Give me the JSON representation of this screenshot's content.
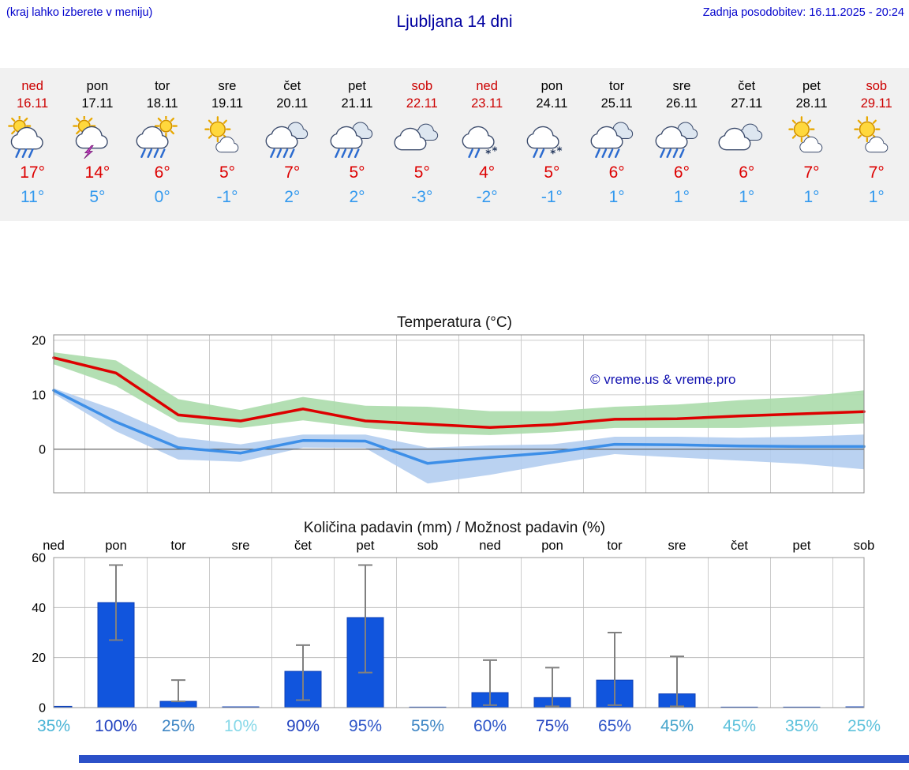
{
  "header": {
    "menu_note": "(kraj lahko izberete v meniju)",
    "title": "Ljubljana 14 dni",
    "last_update": "Zadnja posodobitev: 16.11.2025 - 20:24"
  },
  "forecast_days": [
    {
      "day": "ned",
      "date": "16.11",
      "weekend": true,
      "icon": "sun-rain",
      "tmax": "17°",
      "tmin": "11°"
    },
    {
      "day": "pon",
      "date": "17.11",
      "weekend": false,
      "icon": "sun-storm",
      "tmax": "14°",
      "tmin": "5°"
    },
    {
      "day": "tor",
      "date": "18.11",
      "weekend": false,
      "icon": "sun-rain-heavy",
      "tmax": "6°",
      "tmin": "0°"
    },
    {
      "day": "sre",
      "date": "19.11",
      "weekend": false,
      "icon": "sun-cloud",
      "tmax": "5°",
      "tmin": "-1°"
    },
    {
      "day": "čet",
      "date": "20.11",
      "weekend": false,
      "icon": "rain-heavy",
      "tmax": "7°",
      "tmin": "2°"
    },
    {
      "day": "pet",
      "date": "21.11",
      "weekend": false,
      "icon": "rain-heavy",
      "tmax": "5°",
      "tmin": "2°"
    },
    {
      "day": "sob",
      "date": "22.11",
      "weekend": true,
      "icon": "cloud",
      "tmax": "5°",
      "tmin": "-3°"
    },
    {
      "day": "ned",
      "date": "23.11",
      "weekend": true,
      "icon": "sleet",
      "tmax": "4°",
      "tmin": "-2°"
    },
    {
      "day": "pon",
      "date": "24.11",
      "weekend": false,
      "icon": "sleet",
      "tmax": "5°",
      "tmin": "-1°"
    },
    {
      "day": "tor",
      "date": "25.11",
      "weekend": false,
      "icon": "rain-heavy",
      "tmax": "6°",
      "tmin": "1°"
    },
    {
      "day": "sre",
      "date": "26.11",
      "weekend": false,
      "icon": "rain-heavy",
      "tmax": "6°",
      "tmin": "1°"
    },
    {
      "day": "čet",
      "date": "27.11",
      "weekend": false,
      "icon": "cloud",
      "tmax": "6°",
      "tmin": "1°"
    },
    {
      "day": "pet",
      "date": "28.11",
      "weekend": false,
      "icon": "sun-cloud",
      "tmax": "7°",
      "tmin": "1°"
    },
    {
      "day": "sob",
      "date": "29.11",
      "weekend": true,
      "icon": "sun-cloud",
      "tmax": "7°",
      "tmin": "1°"
    }
  ],
  "chart_data": [
    {
      "type": "line",
      "title": "Temperatura (°C)",
      "x_labels": [
        "ned 16.11",
        "pon 17.11",
        "tor 18.11",
        "sre 19.11",
        "čet 20.11",
        "pet 21.11",
        "sob 22.11",
        "ned 23.11",
        "pon 24.11",
        "tor 25.11",
        "sre 26.11",
        "čet 27.11",
        "pet 28.11",
        "sob 29.11"
      ],
      "ylim": [
        -8,
        21
      ],
      "yticks": [
        0,
        10,
        20
      ],
      "watermark": "© vreme.us & vreme.pro",
      "series": [
        {
          "name": "max-temperature",
          "color": "#dd0000",
          "values": [
            16.8,
            14.0,
            6.3,
            5.2,
            7.4,
            5.2,
            4.6,
            4.0,
            4.5,
            5.5,
            5.6,
            6.1,
            6.5,
            6.9
          ]
        },
        {
          "name": "min-temperature",
          "color": "#3d8fe8",
          "values": [
            10.8,
            5.0,
            0.3,
            -0.7,
            1.6,
            1.5,
            -2.6,
            -1.5,
            -0.6,
            0.9,
            0.8,
            0.6,
            0.5,
            0.5
          ]
        }
      ],
      "bands": [
        {
          "name": "max-range",
          "color": "#abdcab",
          "upper": [
            17.8,
            16.3,
            9.2,
            7.2,
            9.6,
            8.0,
            7.8,
            7.0,
            7.0,
            7.8,
            8.2,
            9.0,
            9.6,
            10.8
          ],
          "lower": [
            15.6,
            11.6,
            5.0,
            3.9,
            5.3,
            3.9,
            2.9,
            2.6,
            3.1,
            3.9,
            3.9,
            3.9,
            4.3,
            4.7
          ]
        },
        {
          "name": "min-range",
          "color": "#b3cdf0",
          "upper": [
            11.2,
            7.2,
            2.2,
            0.9,
            2.7,
            2.7,
            0.3,
            0.7,
            0.9,
            2.3,
            2.3,
            2.1,
            2.3,
            2.7
          ],
          "lower": [
            10.2,
            3.3,
            -1.9,
            -2.3,
            0.3,
            0.2,
            -6.3,
            -4.7,
            -2.7,
            -0.9,
            -1.5,
            -2.1,
            -2.7,
            -3.7
          ]
        }
      ]
    },
    {
      "type": "bar",
      "title": "Količina padavin (mm) / Možnost padavin (%)",
      "categories": [
        "ned",
        "pon",
        "tor",
        "sre",
        "čet",
        "pet",
        "sob",
        "ned",
        "pon",
        "tor",
        "sre",
        "čet",
        "pet",
        "sob"
      ],
      "values": [
        0.5,
        42,
        2.5,
        0.3,
        14.5,
        36,
        0.2,
        6,
        4,
        11,
        5.5,
        0.2,
        0.2,
        0.3
      ],
      "whiskers": [
        null,
        [
          27,
          57
        ],
        [
          2.5,
          11
        ],
        null,
        [
          3,
          25
        ],
        [
          14,
          57
        ],
        null,
        [
          1,
          19
        ],
        [
          0.5,
          16
        ],
        [
          1,
          30
        ],
        [
          0.5,
          20.5
        ],
        null,
        null,
        null
      ],
      "ylim": [
        0,
        60
      ],
      "yticks": [
        0,
        20,
        40,
        60
      ],
      "bar_color": "#1155dd",
      "bar_edge_color": "#0d3fb6",
      "whisker_color": "#808080",
      "percent_labels": [
        {
          "text": "35%",
          "color": "#49b4d6"
        },
        {
          "text": "100%",
          "color": "#2344c0"
        },
        {
          "text": "25%",
          "color": "#3d85c4"
        },
        {
          "text": "10%",
          "color": "#86d8e8"
        },
        {
          "text": "90%",
          "color": "#2344c0"
        },
        {
          "text": "95%",
          "color": "#2d55c8"
        },
        {
          "text": "55%",
          "color": "#3d85c4"
        },
        {
          "text": "60%",
          "color": "#2d55c8"
        },
        {
          "text": "75%",
          "color": "#2344c0"
        },
        {
          "text": "65%",
          "color": "#2d55c8"
        },
        {
          "text": "45%",
          "color": "#49a6cc"
        },
        {
          "text": "45%",
          "color": "#5ec2dc"
        },
        {
          "text": "35%",
          "color": "#5ec2dc"
        },
        {
          "text": "25%",
          "color": "#5ec2dc"
        }
      ]
    }
  ],
  "footer": {
    "bar_color": "#2b50c8"
  }
}
